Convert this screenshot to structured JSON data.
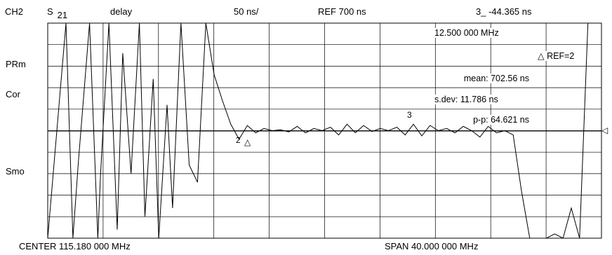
{
  "header": {
    "channel": "CH2",
    "param_main": "S",
    "param_sub": "21",
    "format": "delay",
    "scale": "50 ns/",
    "reference": "REF 700 ns",
    "marker_readout": "3_ -44.365 ns"
  },
  "side_labels": {
    "prm": "PRm",
    "cor": "Cor",
    "smo": "Smo"
  },
  "annotations": {
    "marker_freq": "12.500 000 MHz",
    "ref_marker": "△ REF=2",
    "mean": "mean: 702.56 ns",
    "sdev": "s.dev: 11.786 ns",
    "pp": "p-p: 64.621 ns",
    "marker3": "3",
    "marker2": "2",
    "marker_delta": "△",
    "ref_arrow": "◁"
  },
  "footer": {
    "center": "CENTER  115.180 000 MHz",
    "span": "SPAN   40.000 000 MHz"
  },
  "chart_data": {
    "type": "line",
    "xlabel": "",
    "ylabel": "",
    "xlim": [
      95.18,
      135.18
    ],
    "ylim": [
      450,
      950
    ],
    "grid": true,
    "x_unit": "MHz",
    "y_unit": "ns",
    "series": [
      {
        "values_desc": "group delay trace",
        "x": [
          95.18,
          96.5,
          97.0,
          97.4,
          98.2,
          98.8,
          99.0,
          99.6,
          100.2,
          100.6,
          101.2,
          101.8,
          102.2,
          102.8,
          103.2,
          103.8,
          104.2,
          104.8,
          105.4,
          106.0,
          106.6,
          107.2,
          107.8,
          108.4,
          109.0,
          109.6,
          110.2,
          110.8,
          111.4,
          112.0,
          112.6,
          113.2,
          113.8,
          114.4,
          115.0,
          115.6,
          116.2,
          116.8,
          117.4,
          118.0,
          118.6,
          119.2,
          119.8,
          120.4,
          121.0,
          121.6,
          122.2,
          122.8,
          123.4,
          124.0,
          124.6,
          125.2,
          125.8,
          126.4,
          127.0,
          127.6,
          128.2,
          128.8,
          129.4,
          130.0,
          130.6,
          131.2,
          131.8,
          132.4,
          133.0,
          133.6,
          134.2,
          135.18
        ],
        "y": [
          450,
          950,
          450,
          630,
          950,
          450,
          600,
          950,
          470,
          880,
          600,
          950,
          500,
          820,
          450,
          760,
          520,
          950,
          620,
          580,
          950,
          830,
          770,
          715,
          680,
          712,
          695,
          705,
          700,
          702,
          697,
          710,
          695,
          705,
          700,
          708,
          690,
          715,
          695,
          712,
          698,
          705,
          700,
          708,
          690,
          715,
          688,
          712,
          700,
          705,
          695,
          710,
          700,
          685,
          710,
          695,
          700,
          690,
          560,
          450,
          450,
          450,
          460,
          450,
          520,
          450,
          950,
          950
        ]
      }
    ]
  }
}
